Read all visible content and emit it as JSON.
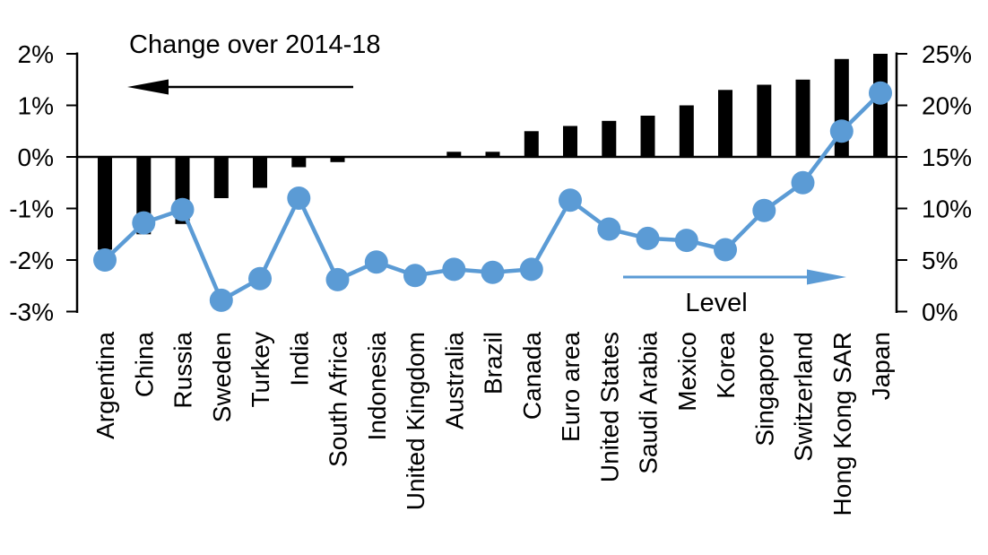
{
  "chart_data": {
    "type": "combo-bar-line",
    "title": "",
    "categories": [
      "Argentina",
      "China",
      "Russia",
      "Sweden",
      "Turkey",
      "India",
      "South Africa",
      "Indonesia",
      "United Kingdom",
      "Australia",
      "Brazil",
      "Canada",
      "Euro area",
      "United States",
      "Saudi Arabia",
      "Mexico",
      "Korea",
      "Singapore",
      "Switzerland",
      "Hong Kong SAR",
      "Japan"
    ],
    "series": [
      {
        "name": "Change over 2014-18",
        "type": "bar",
        "axis": "left",
        "color": "#000000",
        "values": [
          -1.8,
          -1.5,
          -1.3,
          -0.8,
          -0.6,
          -0.2,
          -0.1,
          0,
          0,
          0.1,
          0.1,
          0.5,
          0.6,
          0.7,
          0.8,
          1.0,
          1.3,
          1.4,
          1.5,
          1.9,
          2.0
        ]
      },
      {
        "name": "Level",
        "type": "line",
        "axis": "right",
        "color": "#5b9bd5",
        "values": [
          5.0,
          8.6,
          9.9,
          1.1,
          3.2,
          11.0,
          3.1,
          4.8,
          3.5,
          4.1,
          3.8,
          4.1,
          10.8,
          8.0,
          7.1,
          6.9,
          6.0,
          9.8,
          12.5,
          17.5,
          21.2
        ]
      }
    ],
    "left_axis": {
      "min": -3,
      "max": 2,
      "tick_step": 1,
      "tick_labels": [
        "2%",
        "1%",
        "0%",
        "-1%",
        "-2%",
        "-3%"
      ]
    },
    "right_axis": {
      "min": 0,
      "max": 25,
      "tick_step": 5,
      "tick_labels": [
        "25%",
        "20%",
        "15%",
        "10%",
        "5%",
        "0%"
      ]
    },
    "annotations": [
      {
        "text": "Change over 2014-18",
        "arrow": "left",
        "color": "#000000"
      },
      {
        "text": "Level",
        "arrow": "right",
        "color": "#5b9bd5"
      }
    ],
    "grid": false,
    "legend_position": "none"
  }
}
